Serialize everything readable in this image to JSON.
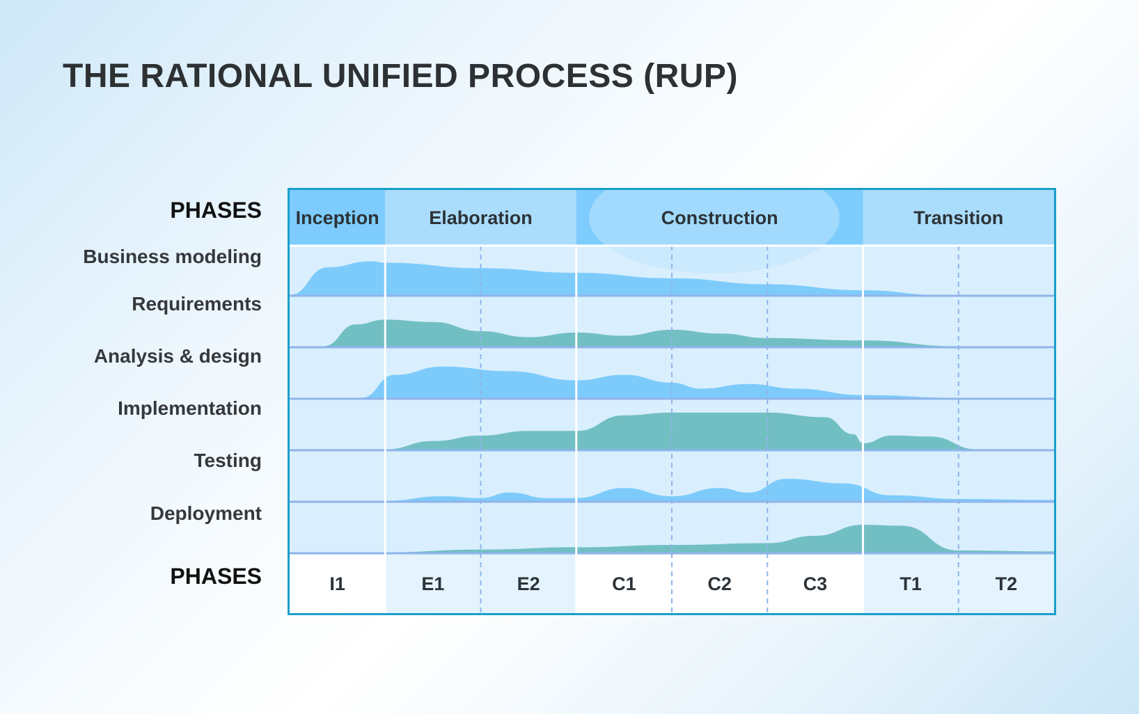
{
  "title": "THE RATIONAL UNIFIED PROCESS (RUP)",
  "phases_label_top": "PHASES",
  "phases_label_bottom": "PHASES",
  "phases": [
    {
      "id": "inception",
      "label": "Inception",
      "start": 0,
      "end": 1,
      "color": "#7dccfd"
    },
    {
      "id": "elaboration",
      "label": "Elaboration",
      "start": 1,
      "end": 3,
      "color": "#aadcfc"
    },
    {
      "id": "construction",
      "label": "Construction",
      "start": 3,
      "end": 6,
      "color": "#7dccfd"
    },
    {
      "id": "transition",
      "label": "Transition",
      "start": 6,
      "end": 8,
      "color": "#aadcfc"
    }
  ],
  "iterations": [
    "I1",
    "E1",
    "E2",
    "C1",
    "C2",
    "C3",
    "T1",
    "T2"
  ],
  "workflows": [
    {
      "label": "Business modeling",
      "color": "#7dcbfb",
      "profile": [
        [
          0,
          0.02
        ],
        [
          0.4,
          0.62
        ],
        [
          0.85,
          0.75
        ],
        [
          1,
          0.72
        ],
        [
          2,
          0.6
        ],
        [
          3,
          0.5
        ],
        [
          4,
          0.38
        ],
        [
          5,
          0.25
        ],
        [
          6,
          0.12
        ],
        [
          6.8,
          0.02
        ],
        [
          8,
          0.02
        ]
      ]
    },
    {
      "label": "Requirements",
      "color": "#72bfc3",
      "profile": [
        [
          0,
          0.02
        ],
        [
          0.35,
          0.02
        ],
        [
          0.7,
          0.5
        ],
        [
          1,
          0.6
        ],
        [
          1.5,
          0.55
        ],
        [
          2,
          0.35
        ],
        [
          2.5,
          0.22
        ],
        [
          3,
          0.32
        ],
        [
          3.5,
          0.25
        ],
        [
          4,
          0.38
        ],
        [
          4.5,
          0.3
        ],
        [
          5,
          0.2
        ],
        [
          6,
          0.15
        ],
        [
          7,
          0.02
        ],
        [
          8,
          0.02
        ]
      ]
    },
    {
      "label": "Analysis & design",
      "color": "#7dcbfb",
      "profile": [
        [
          0,
          0.02
        ],
        [
          0.75,
          0.02
        ],
        [
          1.1,
          0.52
        ],
        [
          1.6,
          0.7
        ],
        [
          2.3,
          0.6
        ],
        [
          3,
          0.4
        ],
        [
          3.5,
          0.52
        ],
        [
          4,
          0.35
        ],
        [
          4.3,
          0.22
        ],
        [
          4.8,
          0.32
        ],
        [
          5.3,
          0.22
        ],
        [
          6,
          0.08
        ],
        [
          7,
          0.02
        ],
        [
          8,
          0.02
        ]
      ]
    },
    {
      "label": "Implementation",
      "color": "#72bfc3",
      "profile": [
        [
          0,
          0.02
        ],
        [
          1,
          0.02
        ],
        [
          1.5,
          0.2
        ],
        [
          2,
          0.32
        ],
        [
          2.5,
          0.42
        ],
        [
          3,
          0.42
        ],
        [
          3.5,
          0.76
        ],
        [
          4,
          0.82
        ],
        [
          5,
          0.82
        ],
        [
          5.6,
          0.72
        ],
        [
          5.9,
          0.35
        ],
        [
          6,
          0.15
        ],
        [
          6.3,
          0.32
        ],
        [
          6.7,
          0.3
        ],
        [
          7.2,
          0.02
        ],
        [
          8,
          0.02
        ]
      ]
    },
    {
      "label": "Testing",
      "color": "#7dcbfb",
      "profile": [
        [
          0,
          0.02
        ],
        [
          1,
          0.02
        ],
        [
          1.6,
          0.12
        ],
        [
          2,
          0.08
        ],
        [
          2.3,
          0.2
        ],
        [
          2.7,
          0.08
        ],
        [
          3,
          0.08
        ],
        [
          3.5,
          0.3
        ],
        [
          4,
          0.12
        ],
        [
          4.5,
          0.3
        ],
        [
          4.8,
          0.2
        ],
        [
          5.2,
          0.5
        ],
        [
          5.8,
          0.4
        ],
        [
          6.3,
          0.14
        ],
        [
          7,
          0.06
        ],
        [
          8,
          0.04
        ]
      ]
    },
    {
      "label": "Deployment",
      "color": "#72bfc3",
      "profile": [
        [
          0,
          0.02
        ],
        [
          1,
          0.02
        ],
        [
          2,
          0.08
        ],
        [
          3,
          0.13
        ],
        [
          4,
          0.18
        ],
        [
          5,
          0.22
        ],
        [
          5.5,
          0.38
        ],
        [
          6,
          0.62
        ],
        [
          6.4,
          0.6
        ],
        [
          7,
          0.06
        ],
        [
          8,
          0.04
        ]
      ]
    }
  ]
}
